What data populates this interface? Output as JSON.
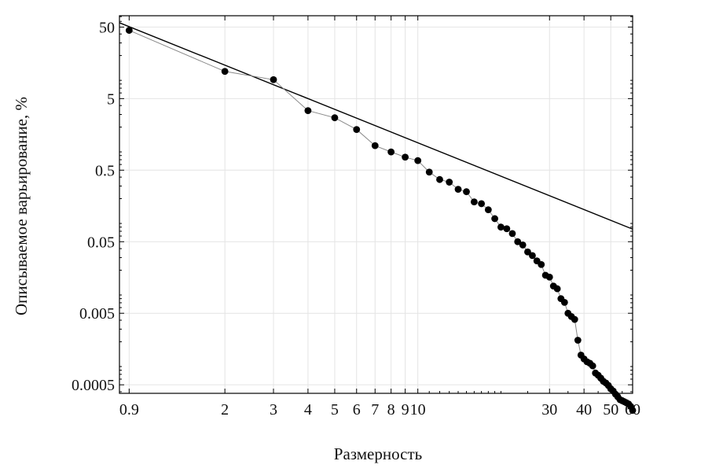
{
  "chart_data": {
    "type": "scatter",
    "xlabel": "Размерность",
    "ylabel": "Описываемое варьирование, %",
    "x_scale": "log",
    "y_scale": "log",
    "xlim": [
      0.83,
      60
    ],
    "ylim": [
      0.00038,
      72
    ],
    "grid": true,
    "x_ticks": [
      {
        "value": 0.9,
        "label": "0.9"
      },
      {
        "value": 2,
        "label": "2"
      },
      {
        "value": 3,
        "label": "3"
      },
      {
        "value": 4,
        "label": "4"
      },
      {
        "value": 5,
        "label": "5"
      },
      {
        "value": 6,
        "label": "6"
      },
      {
        "value": 7,
        "label": "7"
      },
      {
        "value": 8,
        "label": "8"
      },
      {
        "value": 9,
        "label": "9"
      },
      {
        "value": 10,
        "label": "10"
      },
      {
        "value": 30,
        "label": "30"
      },
      {
        "value": 40,
        "label": "40"
      },
      {
        "value": 50,
        "label": "50"
      },
      {
        "value": 60,
        "label": "60"
      }
    ],
    "y_ticks": [
      {
        "value": 50,
        "label": "50"
      },
      {
        "value": 5,
        "label": "5"
      },
      {
        "value": 0.5,
        "label": "0.5"
      },
      {
        "value": 0.05,
        "label": "0.05"
      },
      {
        "value": 0.005,
        "label": "0.005"
      },
      {
        "value": 0.0005,
        "label": "0.0005"
      }
    ],
    "fit_line": {
      "x": [
        0.83,
        60
      ],
      "y": [
        57.4,
        0.075
      ]
    },
    "series": [
      {
        "x": [
          0.9,
          2,
          3,
          4,
          5,
          6,
          7,
          8,
          9,
          10,
          11,
          12,
          13,
          14,
          15,
          16,
          17,
          18,
          19,
          20,
          21,
          22,
          23,
          24,
          25,
          26,
          27,
          28,
          29,
          30,
          31,
          32,
          33,
          34,
          35,
          36,
          37,
          38,
          39,
          40,
          41,
          42,
          43,
          44,
          45,
          46,
          47,
          48,
          49,
          50,
          51,
          52,
          53,
          54,
          55,
          56,
          57,
          58,
          59,
          60
        ],
        "y": [
          45,
          12,
          9.2,
          3.4,
          2.7,
          1.85,
          1.1,
          0.9,
          0.76,
          0.68,
          0.47,
          0.37,
          0.34,
          0.27,
          0.25,
          0.18,
          0.17,
          0.14,
          0.105,
          0.08,
          0.076,
          0.065,
          0.05,
          0.045,
          0.036,
          0.032,
          0.027,
          0.024,
          0.017,
          0.016,
          0.012,
          0.011,
          0.008,
          0.0071,
          0.005,
          0.0045,
          0.0041,
          0.0021,
          0.0013,
          0.00115,
          0.00105,
          0.001,
          0.00092,
          0.00073,
          0.00068,
          0.00062,
          0.00056,
          0.00053,
          0.00049,
          0.00044,
          0.00041,
          0.00037,
          0.00034,
          0.00031,
          0.0003,
          0.00029,
          0.00028,
          0.00027,
          0.00025,
          0.00022
        ]
      }
    ]
  }
}
